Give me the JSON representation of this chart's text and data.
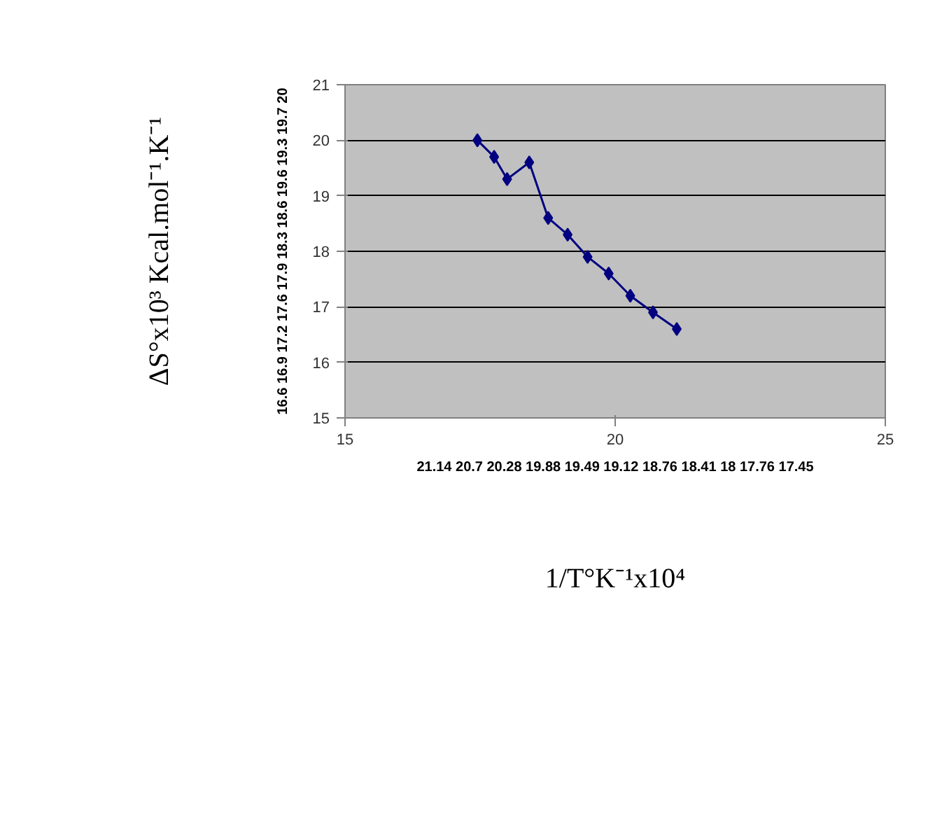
{
  "chart_data": {
    "type": "line",
    "xlabel": "1/T°K⁻¹x10⁴",
    "ylabel": "ΔS°x10³ Kcal.mol⁻¹.K⁻¹",
    "x": [
      17.45,
      17.76,
      18,
      18.41,
      18.76,
      19.12,
      19.49,
      19.88,
      20.28,
      20.7,
      21.14
    ],
    "series": [
      {
        "color": "#000080",
        "values": [
          20,
          19.7,
          19.3,
          19.6,
          18.6,
          18.3,
          17.9,
          17.6,
          17.2,
          16.9,
          16.6
        ]
      }
    ],
    "xlim": [
      15,
      25
    ],
    "xticks": [
      15,
      20,
      25
    ],
    "ylim": [
      15,
      21
    ],
    "yticks": [
      15,
      16,
      17,
      18,
      19,
      20,
      21
    ],
    "grid": "y",
    "marker": "diamond",
    "line_style": "solid",
    "annotations": [
      "16.6 16.9 17.2 17.6 17.9 18.3 18.6 19.6 19.3 19.7 20",
      "21.14 20.7 20.28 19.88 19.49 19.12 18.76 18.41 18 17.76 17.45"
    ]
  }
}
